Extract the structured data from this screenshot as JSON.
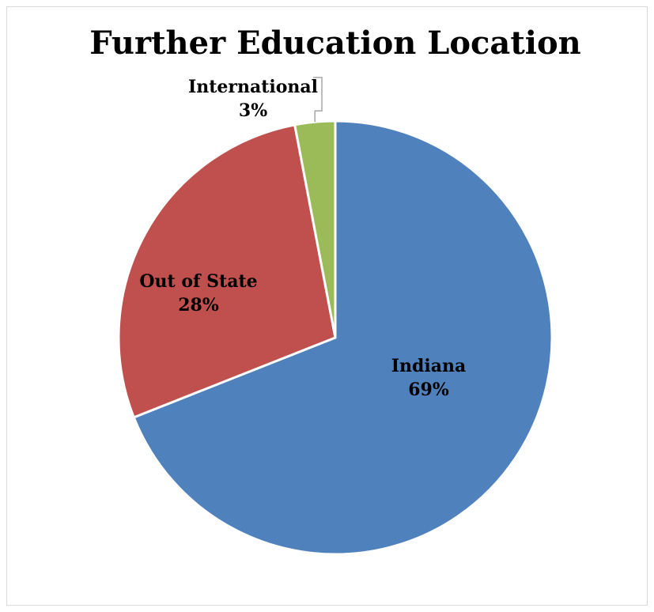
{
  "chart_data": {
    "type": "pie",
    "title": "Further Education Location",
    "slices": [
      {
        "label": "Indiana",
        "value": 69,
        "percent_label": "69%",
        "color": "#4f81bd"
      },
      {
        "label": "Out of State",
        "value": 28,
        "percent_label": "28%",
        "color": "#c0504d"
      },
      {
        "label": "International",
        "value": 3,
        "percent_label": "3%",
        "color": "#9bbb59"
      }
    ],
    "legend": "none",
    "data_labels": "category and percent"
  }
}
